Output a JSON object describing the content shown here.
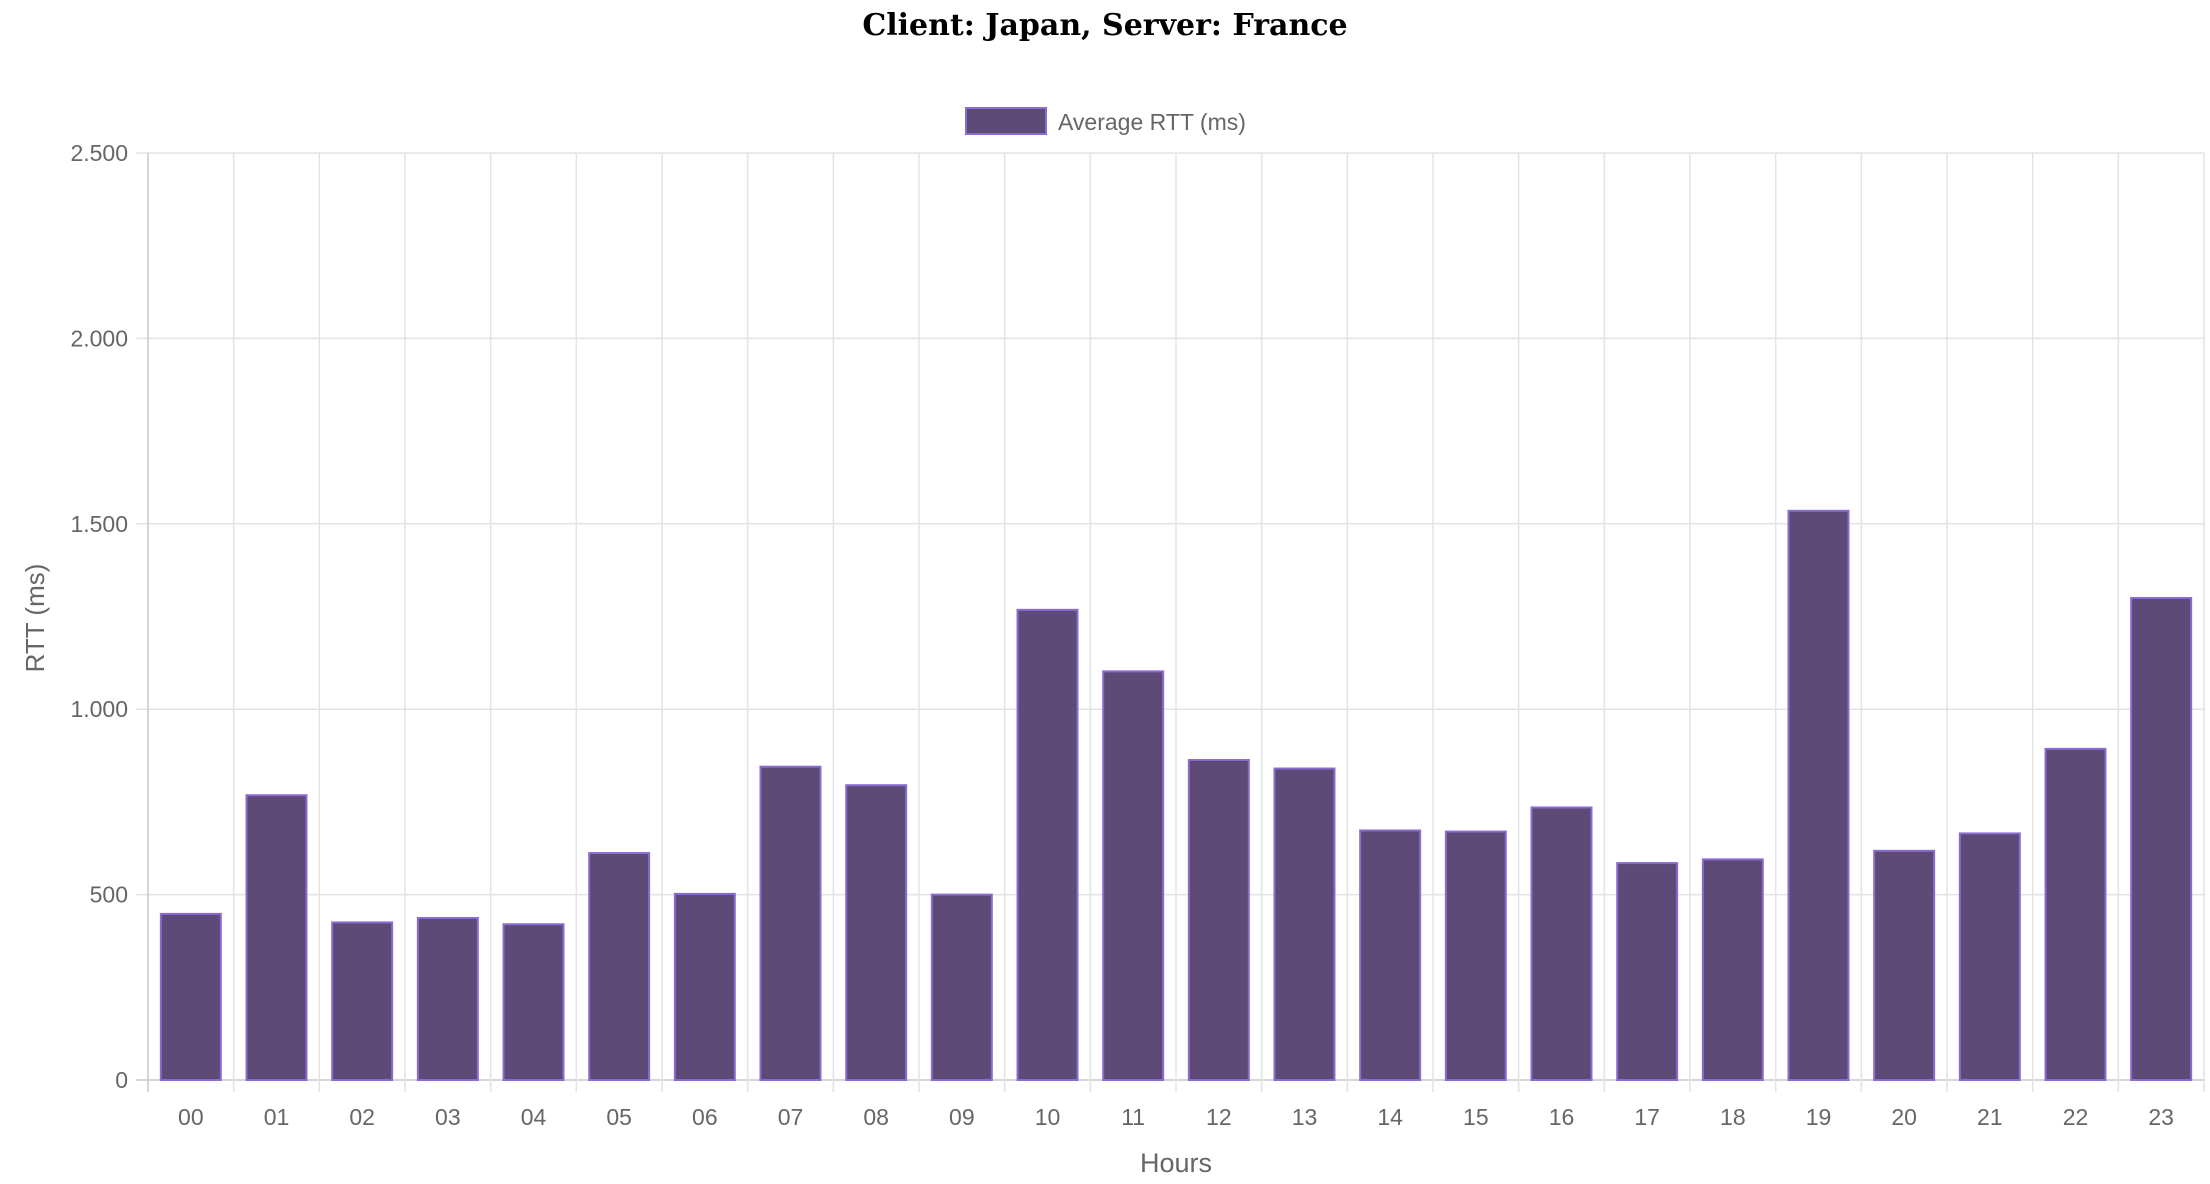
{
  "chart_data": {
    "type": "bar",
    "title": "Client: Japan, Server: France",
    "xlabel": "Hours",
    "ylabel": "RTT (ms)",
    "ylim": [
      0,
      2500
    ],
    "yticks": [
      0,
      500,
      1000,
      1500,
      2000,
      2500
    ],
    "ytick_labels": [
      "0",
      "500",
      "1.000",
      "1.500",
      "2.000",
      "2.500"
    ],
    "grid": true,
    "legend_position": "top-center",
    "categories": [
      "00",
      "01",
      "02",
      "03",
      "04",
      "05",
      "06",
      "07",
      "08",
      "09",
      "10",
      "11",
      "12",
      "13",
      "14",
      "15",
      "16",
      "17",
      "18",
      "19",
      "20",
      "21",
      "22",
      "23"
    ],
    "series": [
      {
        "name": "Average RTT (ms)",
        "color": "#5e4a77",
        "border_color": "#8a6bd1",
        "values": [
          448,
          768,
          425,
          437,
          420,
          612,
          502,
          845,
          795,
          500,
          1268,
          1102,
          863,
          840,
          673,
          670,
          735,
          585,
          595,
          1535,
          618,
          665,
          893,
          1300
        ]
      }
    ]
  }
}
